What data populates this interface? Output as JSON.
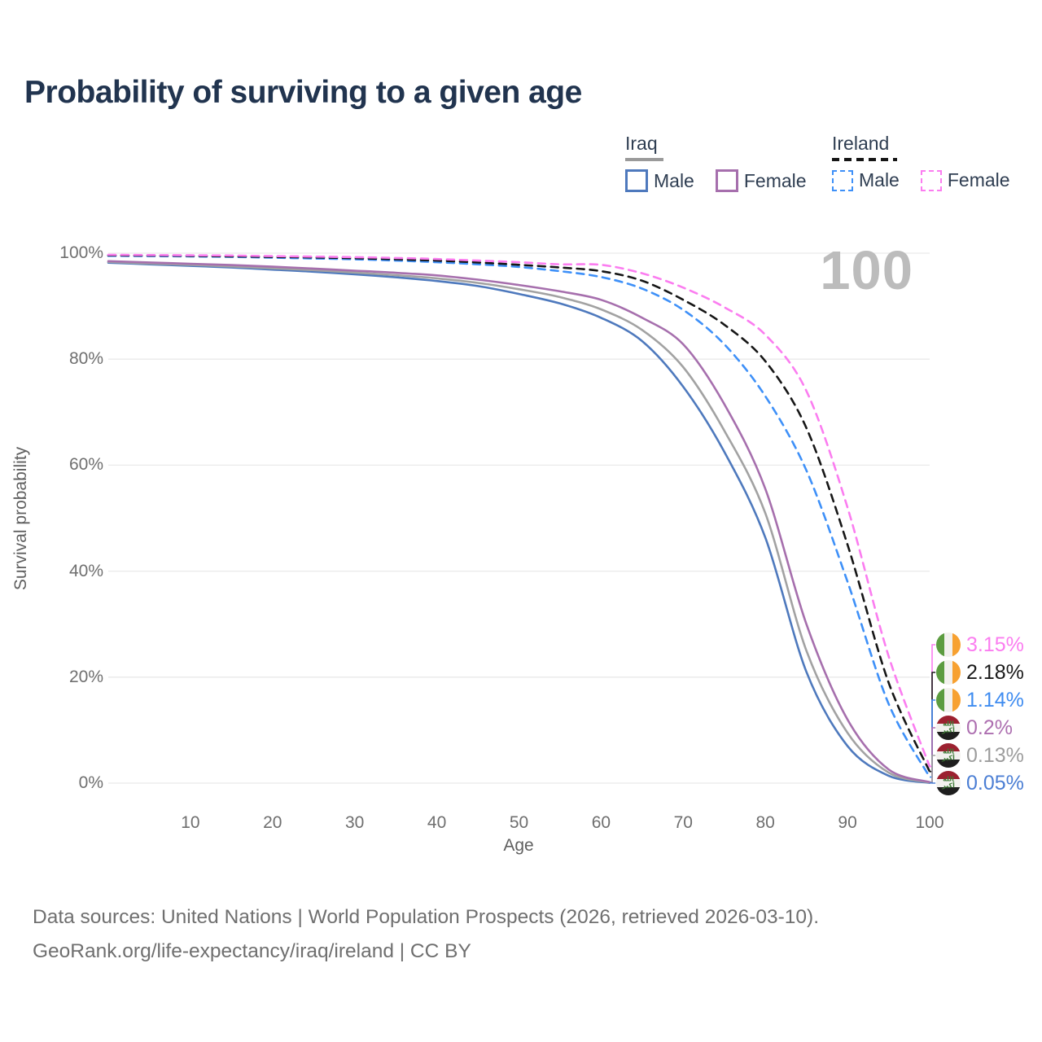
{
  "title": "Probability of surviving to a given age",
  "legend": {
    "groups": [
      {
        "id": "iraq",
        "title": "Iraq",
        "line_style": "solid",
        "items": [
          {
            "label": "Male",
            "series": "iraq_male"
          },
          {
            "label": "Female",
            "series": "iraq_female"
          }
        ]
      },
      {
        "id": "ireland",
        "title": "Ireland",
        "line_style": "dashed",
        "items": [
          {
            "label": "Male",
            "series": "ireland_male"
          },
          {
            "label": "Female",
            "series": "ireland_female"
          }
        ]
      }
    ]
  },
  "axes": {
    "y_title": "Survival probability",
    "x_title": "Age",
    "y_ticks": [
      "100%",
      "80%",
      "60%",
      "40%",
      "20%",
      "0%"
    ],
    "y_tick_values": [
      100,
      80,
      60,
      40,
      20,
      0
    ],
    "x_ticks": [
      10,
      20,
      30,
      40,
      50,
      60,
      70,
      80,
      90,
      100
    ]
  },
  "watermark": "100",
  "icons": {
    "iraq_takbir_script": "الله أكبر"
  },
  "chart_data": {
    "type": "line",
    "title": "Probability of surviving to a given age",
    "xlabel": "Age",
    "ylabel": "Survival probability",
    "xlim": [
      0,
      100
    ],
    "ylim": [
      0,
      100
    ],
    "grid": "horizontal",
    "legend_position": "top-right",
    "series": [
      {
        "id": "iraq_male",
        "name": "Iraq Male",
        "country": "Iraq",
        "sex": "Male",
        "style": "solid",
        "color": "#4e79bd",
        "end_value_label": "0.05%",
        "points": [
          [
            0,
            98.2
          ],
          [
            5,
            97.9
          ],
          [
            10,
            97.6
          ],
          [
            15,
            97.3
          ],
          [
            20,
            96.9
          ],
          [
            25,
            96.5
          ],
          [
            30,
            96.0
          ],
          [
            35,
            95.45
          ],
          [
            40,
            94.75
          ],
          [
            45,
            93.8
          ],
          [
            50,
            92.3
          ],
          [
            55,
            90.5
          ],
          [
            60,
            87.8
          ],
          [
            65,
            83.4
          ],
          [
            70,
            74.8
          ],
          [
            75,
            62.5
          ],
          [
            80,
            46.3
          ],
          [
            85,
            21.0
          ],
          [
            90,
            7.0
          ],
          [
            95,
            1.4
          ],
          [
            100,
            0.05
          ]
        ]
      },
      {
        "id": "iraq_both",
        "name": "Iraq (both sexes)",
        "country": "Iraq",
        "sex": "Both",
        "style": "solid",
        "color": "#a2a2a2",
        "end_value_label": "0.13%",
        "points": [
          [
            0,
            98.35
          ],
          [
            5,
            98.05
          ],
          [
            10,
            97.8
          ],
          [
            15,
            97.5
          ],
          [
            20,
            97.15
          ],
          [
            25,
            96.8
          ],
          [
            30,
            96.35
          ],
          [
            35,
            95.85
          ],
          [
            40,
            95.25
          ],
          [
            45,
            94.4
          ],
          [
            50,
            93.2
          ],
          [
            55,
            91.7
          ],
          [
            60,
            89.4
          ],
          [
            65,
            85.5
          ],
          [
            70,
            78.5
          ],
          [
            75,
            66.5
          ],
          [
            80,
            50.9
          ],
          [
            85,
            25.0
          ],
          [
            90,
            9.5
          ],
          [
            95,
            2.0
          ],
          [
            100,
            0.13
          ]
        ]
      },
      {
        "id": "iraq_female",
        "name": "Iraq Female",
        "country": "Iraq",
        "sex": "Female",
        "style": "solid",
        "color": "#a66fad",
        "end_value_label": "0.2%",
        "points": [
          [
            0,
            98.5
          ],
          [
            5,
            98.25
          ],
          [
            10,
            98.0
          ],
          [
            15,
            97.75
          ],
          [
            20,
            97.45
          ],
          [
            25,
            97.1
          ],
          [
            30,
            96.7
          ],
          [
            35,
            96.3
          ],
          [
            40,
            95.8
          ],
          [
            45,
            95.0
          ],
          [
            50,
            94.0
          ],
          [
            55,
            92.8
          ],
          [
            60,
            91.2
          ],
          [
            65,
            87.8
          ],
          [
            70,
            82.8
          ],
          [
            75,
            71.5
          ],
          [
            80,
            55.5
          ],
          [
            85,
            30.0
          ],
          [
            90,
            12.0
          ],
          [
            95,
            2.6
          ],
          [
            100,
            0.2
          ]
        ]
      },
      {
        "id": "ireland_male",
        "name": "Ireland Male",
        "country": "Ireland",
        "sex": "Male",
        "style": "dashed",
        "color": "#3e90f8",
        "end_value_label": "1.14%",
        "points": [
          [
            0,
            99.5
          ],
          [
            5,
            99.45
          ],
          [
            10,
            99.4
          ],
          [
            15,
            99.3
          ],
          [
            20,
            99.15
          ],
          [
            25,
            99.0
          ],
          [
            30,
            98.85
          ],
          [
            35,
            98.6
          ],
          [
            40,
            98.3
          ],
          [
            45,
            97.9
          ],
          [
            50,
            97.4
          ],
          [
            55,
            96.6
          ],
          [
            60,
            95.5
          ],
          [
            65,
            93.3
          ],
          [
            70,
            89.3
          ],
          [
            75,
            82.8
          ],
          [
            80,
            73.0
          ],
          [
            85,
            59.0
          ],
          [
            90,
            38.0
          ],
          [
            95,
            15.0
          ],
          [
            100,
            1.14
          ]
        ]
      },
      {
        "id": "ireland_both",
        "name": "Ireland (both sexes)",
        "country": "Ireland",
        "sex": "Both",
        "style": "dashed",
        "color": "#161616",
        "end_value_label": "2.18%",
        "points": [
          [
            0,
            99.6
          ],
          [
            5,
            99.55
          ],
          [
            10,
            99.5
          ],
          [
            15,
            99.4
          ],
          [
            20,
            99.3
          ],
          [
            25,
            99.2
          ],
          [
            30,
            99.05
          ],
          [
            35,
            98.85
          ],
          [
            40,
            98.6
          ],
          [
            45,
            98.25
          ],
          [
            50,
            97.8
          ],
          [
            55,
            97.3
          ],
          [
            60,
            96.6
          ],
          [
            65,
            94.8
          ],
          [
            70,
            91.2
          ],
          [
            75,
            86.5
          ],
          [
            80,
            79.6
          ],
          [
            85,
            67.0
          ],
          [
            90,
            45.0
          ],
          [
            95,
            19.0
          ],
          [
            100,
            2.18
          ]
        ]
      },
      {
        "id": "ireland_female",
        "name": "Ireland Female",
        "country": "Ireland",
        "sex": "Female",
        "style": "dashed",
        "color": "#fb7df0",
        "end_value_label": "3.15%",
        "points": [
          [
            0,
            99.7
          ],
          [
            5,
            99.65
          ],
          [
            10,
            99.6
          ],
          [
            15,
            99.55
          ],
          [
            20,
            99.45
          ],
          [
            25,
            99.35
          ],
          [
            30,
            99.25
          ],
          [
            35,
            99.1
          ],
          [
            40,
            98.9
          ],
          [
            45,
            98.6
          ],
          [
            50,
            98.3
          ],
          [
            55,
            97.9
          ],
          [
            60,
            97.8
          ],
          [
            65,
            96.2
          ],
          [
            70,
            93.5
          ],
          [
            75,
            89.8
          ],
          [
            80,
            84.6
          ],
          [
            85,
            74.0
          ],
          [
            90,
            52.0
          ],
          [
            95,
            24.0
          ],
          [
            100,
            3.15
          ]
        ]
      }
    ]
  },
  "right_labels": [
    {
      "value": "3.15%",
      "country": "Ireland",
      "flag": "ireland-flag-icon",
      "color": "#fb7df0",
      "series": "ireland_female"
    },
    {
      "value": "2.18%",
      "country": "Ireland",
      "flag": "ireland-flag-icon",
      "color": "#1a1a1a",
      "series": "ireland_both"
    },
    {
      "value": "1.14%",
      "country": "Ireland",
      "flag": "ireland-flag-icon",
      "color": "#3f8cf0",
      "series": "ireland_male"
    },
    {
      "value": "0.2%",
      "country": "Iraq",
      "flag": "iraq-flag-icon",
      "color": "#ad6fb0",
      "series": "iraq_female"
    },
    {
      "value": "0.13%",
      "country": "Iraq",
      "flag": "iraq-flag-icon",
      "color": "#9d9d9d",
      "series": "iraq_both"
    },
    {
      "value": "0.05%",
      "country": "Iraq",
      "flag": "iraq-flag-icon",
      "color": "#4b7ed4",
      "series": "iraq_male"
    }
  ],
  "footer": {
    "source_line": "Data sources: United Nations | World Population Prospects (2026, retrieved 2026-03-10).",
    "license_line": "GeoRank.org/life-expectancy/iraq/ireland | CC BY"
  }
}
